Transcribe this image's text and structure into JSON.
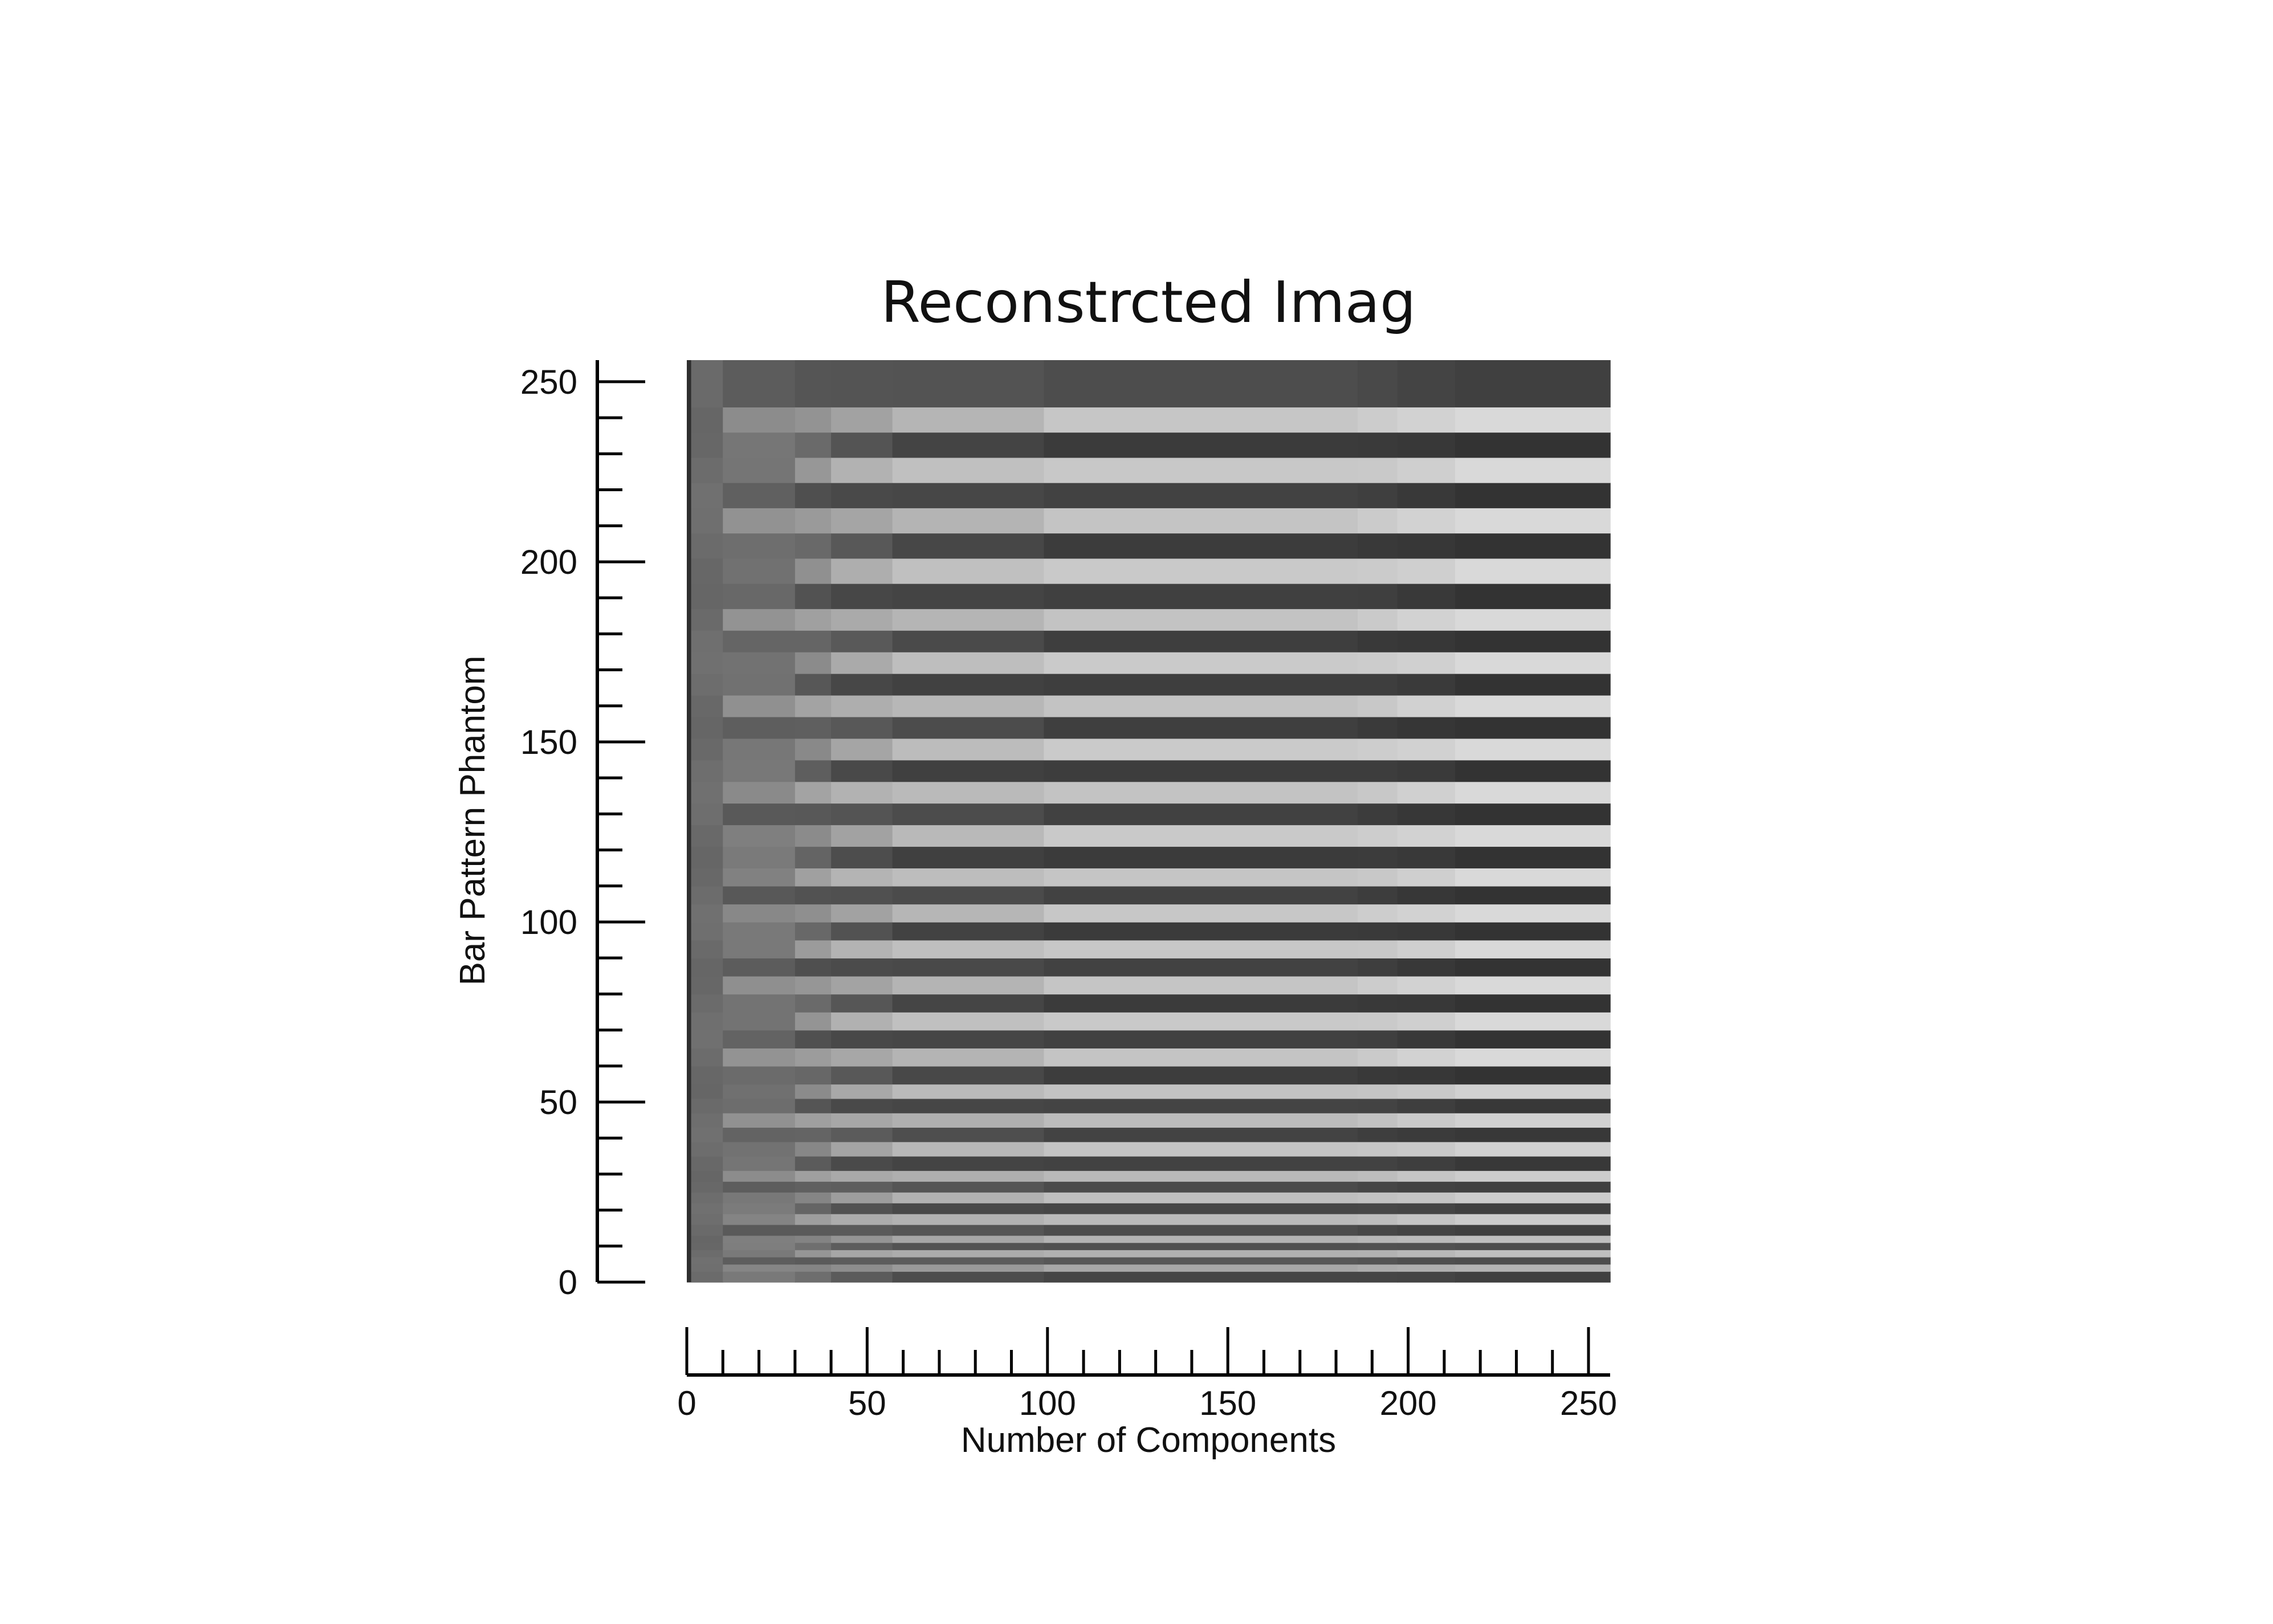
{
  "chart_data": {
    "type": "heatmap",
    "title": "Reconstrcted Imag",
    "xlabel": "Number of Components",
    "ylabel": "Bar Pattern Phantom",
    "xlim": [
      0,
      256
    ],
    "ylim": [
      0,
      256
    ],
    "x_major_ticks": [
      0,
      50,
      100,
      150,
      200,
      250
    ],
    "y_major_ticks": [
      0,
      50,
      100,
      150,
      200,
      250
    ],
    "x_minor_step": 10,
    "y_minor_step": 10,
    "x_tick_labels": [
      "0",
      "50",
      "100",
      "150",
      "200",
      "250"
    ],
    "y_tick_labels": [
      "0",
      "50",
      "100",
      "150",
      "200",
      "250"
    ],
    "colormap": "gray",
    "grid": false,
    "legend": "none",
    "description_values": {
      "stripe_bands": [
        {
          "y0": 0,
          "y1": 3,
          "v": 0.25
        },
        {
          "y0": 3,
          "y1": 5,
          "v": 0.7
        },
        {
          "y0": 5,
          "y1": 7,
          "v": 0.3
        },
        {
          "y0": 7,
          "y1": 9,
          "v": 0.75
        },
        {
          "y0": 9,
          "y1": 11,
          "v": 0.3
        },
        {
          "y0": 11,
          "y1": 13,
          "v": 0.75
        },
        {
          "y0": 13,
          "y1": 16,
          "v": 0.25
        },
        {
          "y0": 16,
          "y1": 19,
          "v": 0.8
        },
        {
          "y0": 19,
          "y1": 22,
          "v": 0.25
        },
        {
          "y0": 22,
          "y1": 25,
          "v": 0.8
        },
        {
          "y0": 25,
          "y1": 28,
          "v": 0.25
        },
        {
          "y0": 28,
          "y1": 31,
          "v": 0.8
        },
        {
          "y0": 31,
          "y1": 35,
          "v": 0.22
        },
        {
          "y0": 35,
          "y1": 39,
          "v": 0.82
        },
        {
          "y0": 39,
          "y1": 43,
          "v": 0.22
        },
        {
          "y0": 43,
          "y1": 47,
          "v": 0.82
        },
        {
          "y0": 47,
          "y1": 51,
          "v": 0.22
        },
        {
          "y0": 51,
          "y1": 55,
          "v": 0.82
        },
        {
          "y0": 55,
          "y1": 60,
          "v": 0.2
        },
        {
          "y0": 60,
          "y1": 65,
          "v": 0.85
        },
        {
          "y0": 65,
          "y1": 70,
          "v": 0.2
        },
        {
          "y0": 70,
          "y1": 75,
          "v": 0.85
        },
        {
          "y0": 75,
          "y1": 80,
          "v": 0.2
        },
        {
          "y0": 80,
          "y1": 85,
          "v": 0.85
        },
        {
          "y0": 85,
          "y1": 90,
          "v": 0.2
        },
        {
          "y0": 90,
          "y1": 95,
          "v": 0.85
        },
        {
          "y0": 95,
          "y1": 100,
          "v": 0.2
        },
        {
          "y0": 100,
          "y1": 105,
          "v": 0.85
        },
        {
          "y0": 105,
          "y1": 110,
          "v": 0.2
        },
        {
          "y0": 110,
          "y1": 115,
          "v": 0.85
        },
        {
          "y0": 115,
          "y1": 121,
          "v": 0.2
        },
        {
          "y0": 121,
          "y1": 127,
          "v": 0.85
        },
        {
          "y0": 127,
          "y1": 133,
          "v": 0.2
        },
        {
          "y0": 133,
          "y1": 139,
          "v": 0.85
        },
        {
          "y0": 139,
          "y1": 145,
          "v": 0.2
        },
        {
          "y0": 145,
          "y1": 151,
          "v": 0.85
        },
        {
          "y0": 151,
          "y1": 157,
          "v": 0.2
        },
        {
          "y0": 157,
          "y1": 163,
          "v": 0.85
        },
        {
          "y0": 163,
          "y1": 169,
          "v": 0.2
        },
        {
          "y0": 169,
          "y1": 175,
          "v": 0.85
        },
        {
          "y0": 175,
          "y1": 181,
          "v": 0.2
        },
        {
          "y0": 181,
          "y1": 187,
          "v": 0.85
        },
        {
          "y0": 187,
          "y1": 194,
          "v": 0.2
        },
        {
          "y0": 194,
          "y1": 201,
          "v": 0.85
        },
        {
          "y0": 201,
          "y1": 208,
          "v": 0.2
        },
        {
          "y0": 208,
          "y1": 215,
          "v": 0.85
        },
        {
          "y0": 215,
          "y1": 222,
          "v": 0.2
        },
        {
          "y0": 222,
          "y1": 229,
          "v": 0.85
        },
        {
          "y0": 229,
          "y1": 236,
          "v": 0.2
        },
        {
          "y0": 236,
          "y1": 243,
          "v": 0.85
        },
        {
          "y0": 243,
          "y1": 256,
          "v": 0.25
        }
      ],
      "column_blocks": [
        {
          "x0": 0,
          "x1": 10,
          "fidelity": 0.0
        },
        {
          "x0": 10,
          "x1": 30,
          "fidelity": 0.15
        },
        {
          "x0": 30,
          "x1": 40,
          "fidelity": 0.35
        },
        {
          "x0": 40,
          "x1": 57,
          "fidelity": 0.55
        },
        {
          "x0": 57,
          "x1": 99,
          "fidelity": 0.7
        },
        {
          "x0": 99,
          "x1": 186,
          "fidelity": 0.82
        },
        {
          "x0": 186,
          "x1": 197,
          "fidelity": 0.86
        },
        {
          "x0": 197,
          "x1": 213,
          "fidelity": 0.92
        },
        {
          "x0": 213,
          "x1": 256,
          "fidelity": 1.0
        }
      ]
    }
  }
}
